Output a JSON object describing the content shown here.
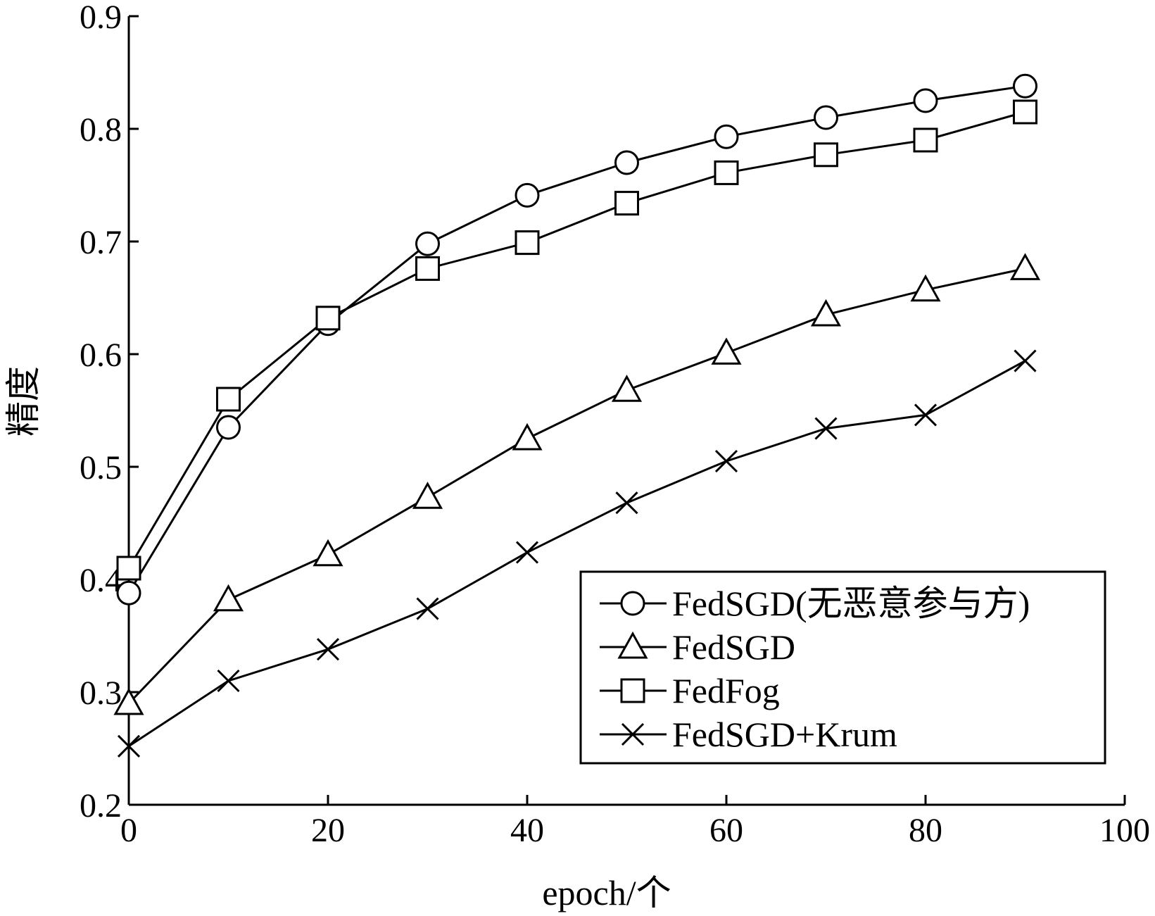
{
  "chart_data": {
    "type": "line",
    "title": "",
    "xlabel": "epoch/个",
    "ylabel": "精度",
    "xlim": [
      0,
      100
    ],
    "ylim": [
      0.2,
      0.9
    ],
    "x_ticks": [
      "0",
      "20",
      "40",
      "60",
      "80",
      "100"
    ],
    "y_ticks": [
      "0.2",
      "0.3",
      "0.4",
      "0.5",
      "0.6",
      "0.7",
      "0.8",
      "0.9"
    ],
    "grid": false,
    "legend_position": "bottom-right",
    "x": [
      0,
      10,
      20,
      30,
      40,
      50,
      60,
      70,
      80,
      90
    ],
    "series": [
      {
        "name": "FedSGD(无恶意参与方)",
        "marker": "circle",
        "values": [
          0.388,
          0.535,
          0.627,
          0.698,
          0.741,
          0.77,
          0.793,
          0.81,
          0.825,
          0.838
        ]
      },
      {
        "name": "FedSGD",
        "marker": "triangle",
        "values": [
          0.29,
          0.382,
          0.422,
          0.473,
          0.525,
          0.568,
          0.601,
          0.635,
          0.657,
          0.676
        ]
      },
      {
        "name": "FedFog",
        "marker": "square",
        "values": [
          0.41,
          0.56,
          0.632,
          0.676,
          0.699,
          0.734,
          0.761,
          0.777,
          0.79,
          0.815
        ]
      },
      {
        "name": "FedSGD+Krum",
        "marker": "x",
        "values": [
          0.252,
          0.31,
          0.338,
          0.374,
          0.424,
          0.468,
          0.505,
          0.534,
          0.546,
          0.594
        ]
      }
    ]
  }
}
